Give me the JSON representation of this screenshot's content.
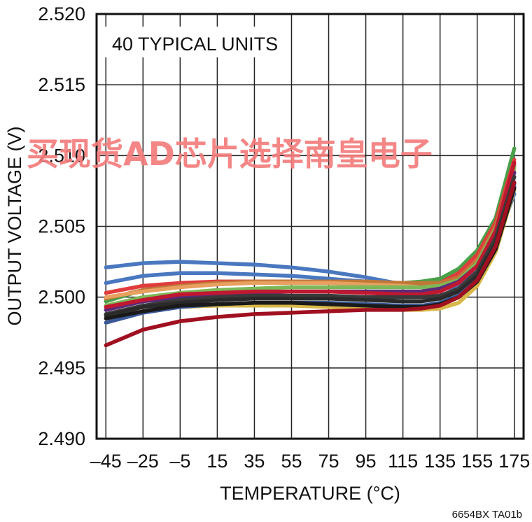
{
  "chart_data": {
    "type": "line",
    "title": "",
    "annotation": "40 TYPICAL UNITS",
    "xlabel": "TEMPERATURE (°C)",
    "ylabel": "OUTPUT VOLTAGE (V)",
    "xlim": [
      -50,
      180
    ],
    "ylim": [
      2.49,
      2.52
    ],
    "x_ticks": [
      -45,
      -25,
      -5,
      15,
      35,
      55,
      75,
      95,
      115,
      135,
      155,
      175
    ],
    "x_tick_labels": [
      "–45",
      "–25",
      "–5",
      "15",
      "35",
      "55",
      "75",
      "95",
      "115",
      "135",
      "155",
      "175"
    ],
    "y_ticks": [
      2.49,
      2.495,
      2.5,
      2.505,
      2.51,
      2.515,
      2.52
    ],
    "y_tick_labels": [
      "2.490",
      "2.495",
      "2.500",
      "2.505",
      "2.510",
      "2.515",
      "2.520"
    ],
    "grid": true,
    "x": [
      -45,
      -25,
      -5,
      15,
      35,
      55,
      75,
      95,
      115,
      125,
      135,
      145,
      155,
      165,
      175
    ],
    "series": [
      {
        "color": "#4a78c0",
        "values": [
          2.5021,
          2.5024,
          2.5025,
          2.5024,
          2.5023,
          2.5021,
          2.5018,
          2.5014,
          2.5009,
          2.5007,
          2.5005,
          2.5008,
          2.5018,
          2.5038,
          2.5073
        ]
      },
      {
        "color": "#4a78c0",
        "values": [
          2.501,
          2.5015,
          2.5017,
          2.5017,
          2.5016,
          2.5015,
          2.5013,
          2.5011,
          2.5009,
          2.5008,
          2.5008,
          2.5012,
          2.5022,
          2.5043,
          2.508
        ]
      },
      {
        "color": "#48a048",
        "values": [
          2.4997,
          2.5005,
          2.5009,
          2.5011,
          2.5011,
          2.5011,
          2.5011,
          2.501,
          2.501,
          2.5011,
          2.5013,
          2.502,
          2.5033,
          2.5056,
          2.5105
        ]
      },
      {
        "color": "#e03c3c",
        "values": [
          2.5003,
          2.5008,
          2.501,
          2.5011,
          2.5011,
          2.5011,
          2.501,
          2.5009,
          2.5008,
          2.5008,
          2.501,
          2.5017,
          2.503,
          2.5053,
          2.5097
        ]
      },
      {
        "color": "#c07838",
        "values": [
          2.4999,
          2.5005,
          2.5008,
          2.501,
          2.5011,
          2.5011,
          2.5011,
          2.5011,
          2.501,
          2.501,
          2.501,
          2.5014,
          2.5026,
          2.505,
          2.5093
        ]
      },
      {
        "color": "#e8a060",
        "values": [
          2.5,
          2.5004,
          2.5007,
          2.5009,
          2.501,
          2.501,
          2.501,
          2.5009,
          2.5008,
          2.5007,
          2.5008,
          2.5012,
          2.5024,
          2.5048,
          2.509
        ]
      },
      {
        "color": "#7cb858",
        "values": [
          2.4994,
          2.5,
          2.5003,
          2.5005,
          2.5006,
          2.5007,
          2.5007,
          2.5007,
          2.5007,
          2.5007,
          2.5008,
          2.5012,
          2.5024,
          2.5048,
          2.5092
        ]
      },
      {
        "color": "#5a2a78",
        "values": [
          2.4991,
          2.4997,
          2.5,
          2.5002,
          2.5003,
          2.5004,
          2.5004,
          2.5004,
          2.5004,
          2.5004,
          2.5006,
          2.5011,
          2.5022,
          2.5046,
          2.5088
        ]
      },
      {
        "color": "#c01830",
        "values": [
          2.4993,
          2.4998,
          2.5002,
          2.5003,
          2.5004,
          2.5004,
          2.5004,
          2.5003,
          2.5002,
          2.5002,
          2.5004,
          2.501,
          2.5022,
          2.5047,
          2.5095
        ]
      },
      {
        "color": "#3a3a3a",
        "values": [
          2.4988,
          2.4994,
          2.4998,
          2.5,
          2.5001,
          2.5001,
          2.5001,
          2.5,
          2.5,
          2.5,
          2.5001,
          2.5006,
          2.5018,
          2.5042,
          2.5085
        ]
      },
      {
        "color": "#2a2a2a",
        "values": [
          2.4987,
          2.4993,
          2.4996,
          2.4998,
          2.4999,
          2.4999,
          2.4999,
          2.4998,
          2.4997,
          2.4997,
          2.4999,
          2.5004,
          2.5015,
          2.5038,
          2.5081
        ]
      },
      {
        "color": "#d8b848",
        "values": [
          2.4985,
          2.499,
          2.4993,
          2.4994,
          2.4994,
          2.4994,
          2.4993,
          2.4992,
          2.4991,
          2.4991,
          2.4992,
          2.4996,
          2.5008,
          2.5032,
          2.5076
        ]
      },
      {
        "color": "#3a5898",
        "values": [
          2.4982,
          2.4989,
          2.4993,
          2.4995,
          2.4996,
          2.4996,
          2.4996,
          2.4995,
          2.4994,
          2.4994,
          2.4996,
          2.5001,
          2.5012,
          2.5036,
          2.5078
        ]
      },
      {
        "color": "#1a1a1a",
        "values": [
          2.4985,
          2.499,
          2.4994,
          2.4995,
          2.4996,
          2.4996,
          2.4995,
          2.4994,
          2.4993,
          2.4993,
          2.4995,
          2.5,
          2.5011,
          2.5034,
          2.5077
        ]
      },
      {
        "color": "#a01020",
        "values": [
          2.4966,
          2.4977,
          2.4983,
          2.4986,
          2.4988,
          2.4989,
          2.499,
          2.4991,
          2.4991,
          2.4992,
          2.4994,
          2.5,
          2.5012,
          2.5036,
          2.5081
        ]
      }
    ],
    "watermark": "买现货AD芯片选择南皇电子",
    "figure_code": "6654BX TA01b"
  }
}
